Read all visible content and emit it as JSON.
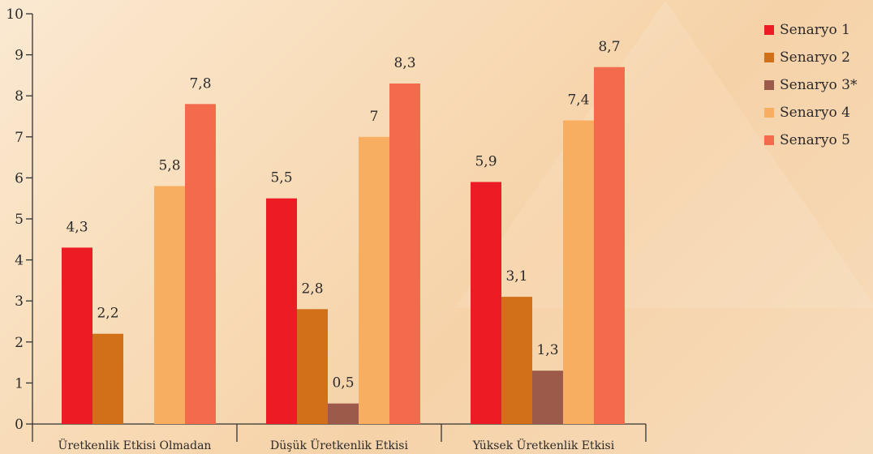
{
  "chart_data": {
    "type": "bar",
    "categories": [
      "Üretkenlik Etkisi Olmadan",
      "Düşük Üretkenlik Etkisi",
      "Yüksek Üretkenlik Etkisi"
    ],
    "series": [
      {
        "name": "Senaryo 1",
        "color": "#ec1c24",
        "values": [
          4.3,
          5.5,
          5.9
        ],
        "labels": [
          "4,3",
          "5,5",
          "5,9"
        ]
      },
      {
        "name": "Senaryo 2",
        "color": "#d2701a",
        "values": [
          2.2,
          2.8,
          3.1
        ],
        "labels": [
          "2,2",
          "2,8",
          "3,1"
        ]
      },
      {
        "name": "Senaryo 3*",
        "color": "#9c5a4a",
        "values": [
          null,
          0.5,
          1.3
        ],
        "labels": [
          "",
          "0,5",
          "1,3"
        ]
      },
      {
        "name": "Senaryo 4",
        "color": "#f8ae60",
        "values": [
          5.8,
          7.0,
          7.4
        ],
        "labels": [
          "5,8",
          "7",
          "7,4"
        ]
      },
      {
        "name": "Senaryo 5",
        "color": "#f46a4c",
        "values": [
          7.8,
          8.3,
          8.7
        ],
        "labels": [
          "7,8",
          "8,3",
          "8,7"
        ]
      }
    ],
    "yticks": [
      "0",
      "1",
      "2",
      "3",
      "4",
      "5",
      "6",
      "7",
      "8",
      "9",
      "10"
    ],
    "ylim": [
      0,
      10
    ],
    "legend_position": "right",
    "grid": false
  }
}
